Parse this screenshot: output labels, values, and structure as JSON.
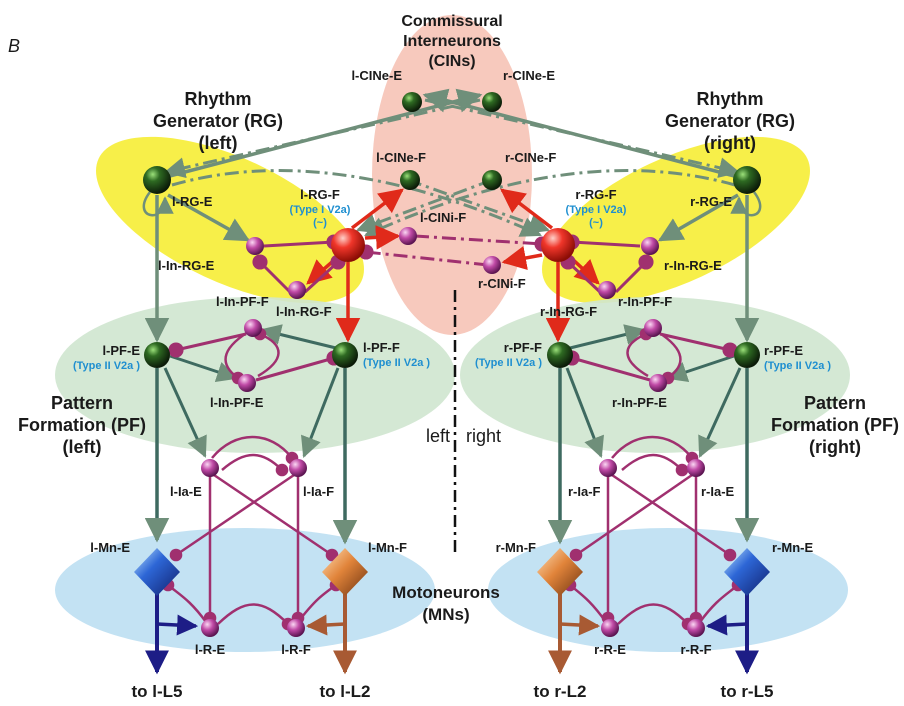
{
  "panel_label": "B",
  "colors": {
    "rg_region": "#f6ee3a",
    "cin_region": "#f7c9bd",
    "pf_region": "#cfe6cf",
    "mn_region": "#c3e2f3",
    "excitatory_gray": "#6f8f7a",
    "rg_f_arrow": "#e02a1a",
    "inhibitory": "#a0306f",
    "subtype_text": "#1f8fd0",
    "flexor_output": "#a85a33",
    "extensor_output": "#1d1d86"
  },
  "regions": {
    "cin": [
      "Commissural",
      "Interneurons",
      "(CINs)"
    ],
    "rg_left": [
      "Rhythm",
      "Generator (RG)",
      "(left)"
    ],
    "rg_right": [
      "Rhythm",
      "Generator (RG)",
      "(right)"
    ],
    "pf_left": [
      "Pattern",
      "Formation (PF)",
      "(left)"
    ],
    "pf_right": [
      "Pattern",
      "Formation (PF)",
      "(right)"
    ],
    "mn": [
      "Motoneurons",
      "(MNs)"
    ]
  },
  "side_labels": {
    "left": "left",
    "right": "right"
  },
  "neurons": {
    "l_cine_e": "l-CINe-E",
    "r_cine_e": "r-CINe-E",
    "l_cine_f": "l-CINe-F",
    "r_cine_f": "r-CINe-F",
    "l_cini_f": "l-CINi-F",
    "r_cini_f": "r-CINi-F",
    "l_rg_e": "l-RG-E",
    "r_rg_e": "r-RG-E",
    "l_rg_f": "l-RG-F",
    "r_rg_f": "r-RG-F",
    "l_rg_f_type": [
      "(Type I V2a)",
      "(~)"
    ],
    "r_rg_f_type": [
      "(Type I V2a)",
      "(~)"
    ],
    "l_in_rg_e": "l-In-RG-E",
    "r_in_rg_e": "r-In-RG-E",
    "l_in_rg_f": "l-In-RG-F",
    "r_in_rg_f": "r-In-RG-F",
    "l_in_pf_f": "l-In-PF-F",
    "r_in_pf_f": "r-In-PF-F",
    "l_in_pf_e": "l-In-PF-E",
    "r_in_pf_e": "r-In-PF-E",
    "l_pf_e": "l-PF-E",
    "r_pf_e": "r-PF-E",
    "l_pf_f": "l-PF-F",
    "r_pf_f": "r-PF-F",
    "pf_type": "(Type II V2a )",
    "l_ia_e": "l-Ia-E",
    "l_ia_f": "l-Ia-F",
    "r_ia_f": "r-Ia-F",
    "r_ia_e": "r-Ia-E",
    "l_mn_e": "l-Mn-E",
    "l_mn_f": "l-Mn-F",
    "r_mn_f": "r-Mn-F",
    "r_mn_e": "r-Mn-E",
    "l_r_e": "l-R-E",
    "l_r_f": "l-R-F",
    "r_r_e": "r-R-E",
    "r_r_f": "r-R-F"
  },
  "outputs": {
    "l_l5": "to l-L5",
    "l_l2": "to l-L2",
    "r_l2": "to r-L2",
    "r_l5": "to r-L5"
  }
}
